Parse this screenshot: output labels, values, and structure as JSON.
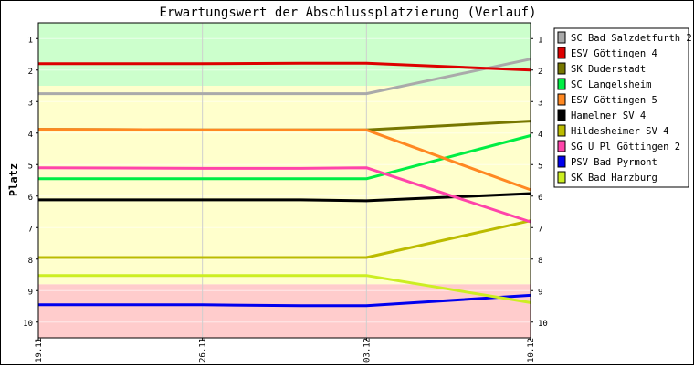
{
  "chart_data": {
    "type": "line",
    "title": "Erwartungswert der Abschlussplatzierung (Verlauf)",
    "ylabel": "Platz",
    "xlabel": "",
    "y_reversed": true,
    "ylim": [
      0.5,
      10.5
    ],
    "yticks": [
      "1",
      "2",
      "3",
      "4",
      "5",
      "6",
      "7",
      "8",
      "9",
      "10"
    ],
    "xticks": [
      "19.11",
      "26.11",
      "03.12",
      "10.12"
    ],
    "zones": [
      {
        "from": 0.5,
        "to": 2.5,
        "color": "#ccffcc"
      },
      {
        "from": 2.5,
        "to": 8.8,
        "color": "#ffffcc"
      },
      {
        "from": 8.8,
        "to": 10.5,
        "color": "#ffcccc"
      }
    ],
    "grid": true,
    "legend_position": "right",
    "series": [
      {
        "name": "SC Bad Salzdetfurth 2",
        "color": "#aaaaaa",
        "values": [
          2.75,
          2.75,
          2.75,
          2.75,
          1.65
        ]
      },
      {
        "name": "ESV Göttingen 4",
        "color": "#dd0000",
        "values": [
          1.8,
          1.8,
          1.78,
          1.78,
          2.0
        ]
      },
      {
        "name": "SK Duderstadt",
        "color": "#777700",
        "values": [
          3.88,
          3.9,
          3.9,
          3.9,
          3.62
        ]
      },
      {
        "name": "SC Langelsheim",
        "color": "#00ee44",
        "values": [
          5.45,
          5.45,
          5.45,
          5.45,
          4.08
        ]
      },
      {
        "name": "ESV Göttingen 5",
        "color": "#ff8822",
        "values": [
          3.88,
          3.9,
          3.9,
          3.9,
          5.8
        ]
      },
      {
        "name": "Hamelner SV 4",
        "color": "#000000",
        "values": [
          6.12,
          6.12,
          6.12,
          6.15,
          5.92
        ]
      },
      {
        "name": "Hildesheimer SV 4",
        "color": "#bbbb00",
        "values": [
          7.95,
          7.95,
          7.95,
          7.95,
          6.78
        ]
      },
      {
        "name": "SG U Pl Göttingen 2",
        "color": "#ff44aa",
        "values": [
          5.1,
          5.12,
          5.12,
          5.1,
          6.82
        ]
      },
      {
        "name": "PSV Bad Pyrmont",
        "color": "#0000ee",
        "values": [
          9.45,
          9.45,
          9.48,
          9.48,
          9.15
        ]
      },
      {
        "name": "SK Bad Harzburg",
        "color": "#ccee22",
        "values": [
          8.52,
          8.52,
          8.52,
          8.52,
          9.38
        ]
      }
    ],
    "x": [
      0,
      1,
      1.6,
      2,
      3
    ]
  }
}
